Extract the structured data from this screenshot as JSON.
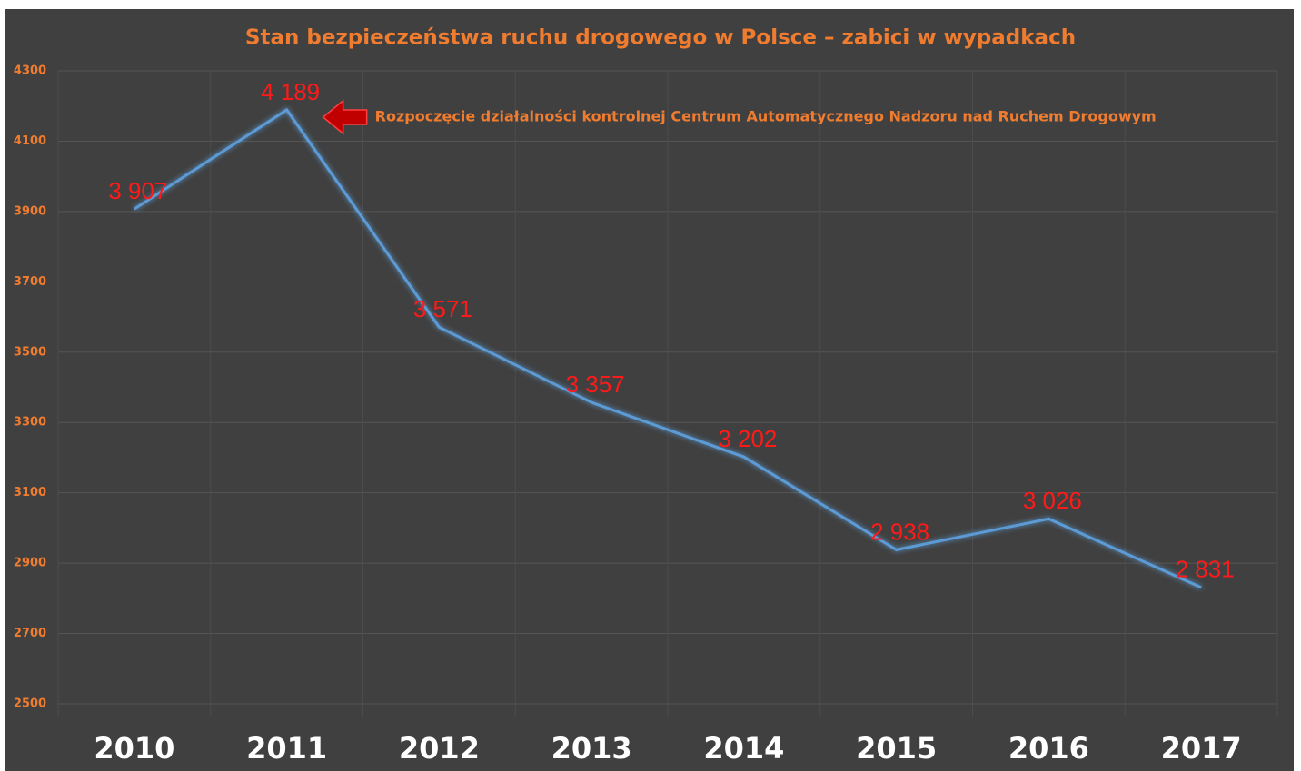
{
  "chart_data": {
    "type": "line",
    "title": "Stan bezpieczeństwa ruchu drogowego w Polsce – zabici w wypadkach",
    "annotation": "Rozpoczęcie działalności kontrolnej Centrum Automatycznego Nadzoru nad Ruchem Drogowym",
    "categories": [
      "2010",
      "2011",
      "2012",
      "2013",
      "2014",
      "2015",
      "2016",
      "2017"
    ],
    "values": [
      3907,
      4189,
      3571,
      3357,
      3202,
      2938,
      3026,
      2831
    ],
    "value_labels": [
      "3 907",
      "4 189",
      "3 571",
      "3 357",
      "3 202",
      "2 938",
      "3 026",
      "2 831"
    ],
    "color": "#5b9bd5",
    "ylim": [
      2500,
      4300
    ],
    "yticks": [
      2500,
      2700,
      2900,
      3100,
      3300,
      3500,
      3700,
      3900,
      4100,
      4300
    ],
    "grid": true
  }
}
